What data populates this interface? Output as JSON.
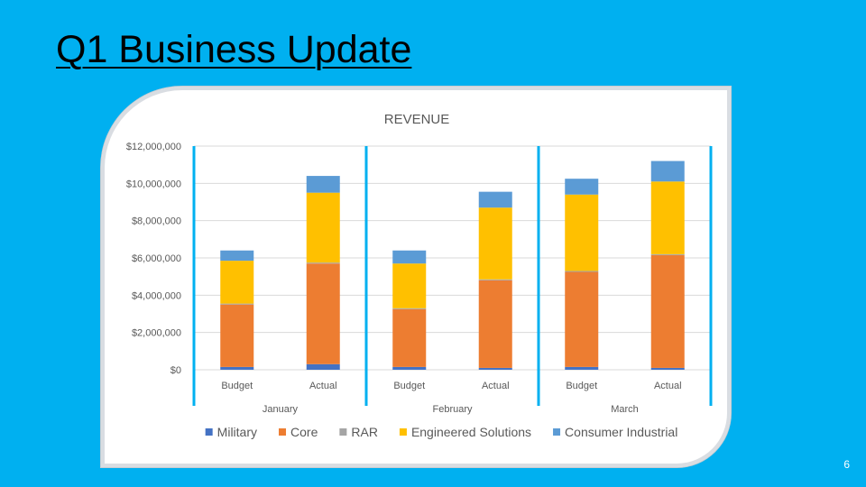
{
  "slide": {
    "title": "Q1 Business Update",
    "number": "6"
  },
  "chart_data": {
    "type": "bar",
    "stacked": true,
    "title": "REVENUE",
    "xlabel": "",
    "ylabel": "",
    "ylim": [
      0,
      12000000
    ],
    "yticks": [
      0,
      2000000,
      4000000,
      6000000,
      8000000,
      10000000,
      12000000
    ],
    "ytick_labels": [
      "$0",
      "$2,000,000",
      "$4,000,000",
      "$6,000,000",
      "$8,000,000",
      "$10,000,000",
      "$12,000,000"
    ],
    "grid": true,
    "legend": "bottom",
    "groups": [
      "January",
      "February",
      "March"
    ],
    "categories": [
      "Budget",
      "Actual",
      "Budget",
      "Actual",
      "Budget",
      "Actual"
    ],
    "category_group": [
      0,
      0,
      1,
      1,
      2,
      2
    ],
    "series": [
      {
        "name": "Military",
        "color": "#4472c4",
        "values": [
          150000,
          300000,
          150000,
          100000,
          150000,
          100000
        ]
      },
      {
        "name": "Core",
        "color": "#ed7d31",
        "values": [
          3350000,
          5400000,
          3100000,
          4700000,
          5100000,
          6050000
        ]
      },
      {
        "name": "RAR",
        "color": "#a5a5a5",
        "values": [
          50000,
          50000,
          50000,
          50000,
          50000,
          50000
        ]
      },
      {
        "name": "Engineered Solutions",
        "color": "#ffc000",
        "values": [
          2300000,
          3750000,
          2400000,
          3850000,
          4100000,
          3900000
        ]
      },
      {
        "name": "Consumer Industrial",
        "color": "#5b9bd5",
        "values": [
          550000,
          900000,
          700000,
          850000,
          850000,
          1100000
        ]
      }
    ]
  }
}
